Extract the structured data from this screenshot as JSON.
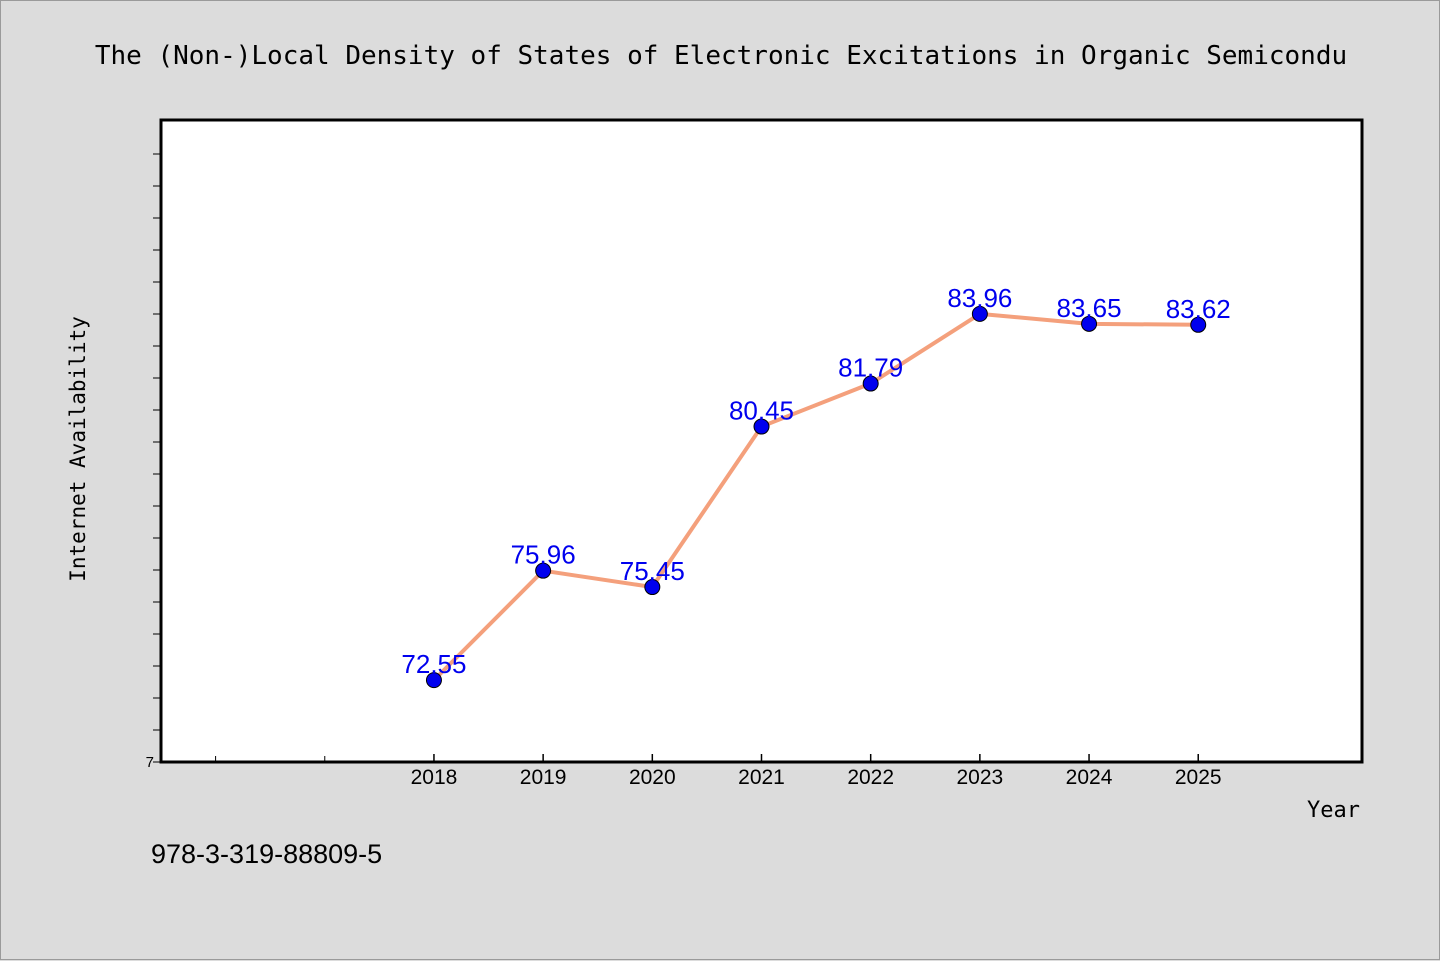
{
  "chart_data": {
    "type": "line",
    "title": "The (Non-)Local Density of States of Electronic Excitations in Organic Semicondu",
    "xlabel": "Year",
    "ylabel": "Internet Availability",
    "x": [
      2018,
      2019,
      2020,
      2021,
      2022,
      2023,
      2024,
      2025
    ],
    "tick_labels": [
      "2018",
      "2019",
      "2020",
      "2021",
      "2022",
      "2023",
      "2024",
      "2025"
    ],
    "xlim": [
      2015.5,
      2026.5
    ],
    "ylim": [
      70,
      90
    ],
    "ytick_label": "7",
    "series": [
      {
        "values": [
          72.55,
          75.96,
          75.45,
          80.45,
          81.79,
          83.96,
          83.65,
          83.62
        ],
        "data_labels": [
          "72.55",
          "75.96",
          "75.45",
          "80.45",
          "81.79",
          "83.96",
          "83.65",
          "83.62"
        ],
        "line_color": "#f4a07c",
        "marker_color": "#0000ee"
      }
    ],
    "grid": false,
    "legend": "none"
  },
  "footer": {
    "isbn": "978-3-319-88809-5"
  }
}
